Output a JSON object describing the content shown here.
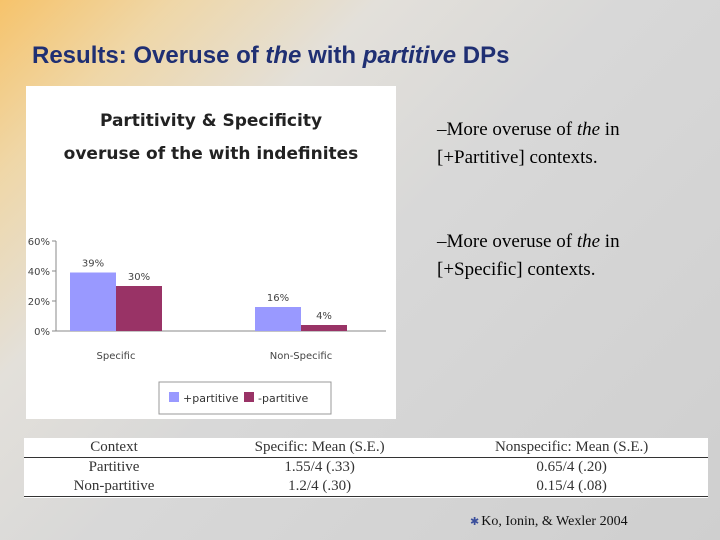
{
  "slide": {
    "title_part1": "Results: Overuse of ",
    "title_the": "the",
    "title_part2": " with ",
    "title_partitive": "partitive",
    "title_part3": " DPs"
  },
  "chart_data": {
    "type": "bar",
    "title_line1": "Partitivity & Specificity",
    "title_line2": "overuse of the with indefinites",
    "categories": [
      "Specific",
      "Non-Specific"
    ],
    "series": [
      {
        "name": "+partitive",
        "values": [
          39,
          16
        ],
        "labels": [
          "39%",
          "16%"
        ],
        "color": "#9999ff"
      },
      {
        "name": "-partitive",
        "values": [
          30,
          4
        ],
        "labels": [
          "30%",
          "4%"
        ],
        "color": "#993366"
      }
    ],
    "yticks": [
      "0%",
      "20%",
      "40%",
      "60%"
    ],
    "ylim": [
      0,
      60
    ],
    "grid": false,
    "legend_position": "bottom"
  },
  "bullets": [
    {
      "prefix": "–More overuse of ",
      "italic": "the",
      "suffix": " in",
      "line2": "[+Partitive] contexts."
    },
    {
      "prefix": "–More overuse of ",
      "italic": "the",
      "suffix": " in",
      "line2": "[+Specific] contexts."
    }
  ],
  "table": {
    "headers": [
      "Context",
      "Specific: Mean (S.E.)",
      "Nonspecific: Mean (S.E.)"
    ],
    "rows": [
      [
        "Partitive",
        "1.55/4 (.33)",
        "0.65/4 (.20)"
      ],
      [
        "Non-partitive",
        "1.2/4 (.30)",
        "0.15/4 (.08)"
      ]
    ]
  },
  "citation": {
    "mark": "✱",
    "text": "Ko, Ionin, & Wexler 2004"
  }
}
